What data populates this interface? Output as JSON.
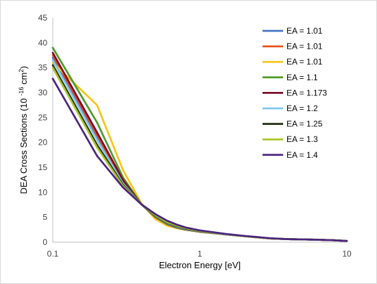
{
  "chart_data": {
    "type": "line",
    "xscale": "log",
    "xlim": [
      0.1,
      10
    ],
    "ylim": [
      0,
      45
    ],
    "xticks": [
      0.1,
      1,
      10
    ],
    "xtick_labels": [
      "0.1",
      "1",
      "10"
    ],
    "yticks": [
      0,
      5,
      10,
      15,
      20,
      25,
      30,
      35,
      40,
      45
    ],
    "ytick_labels": [
      "0",
      "5",
      "10",
      "15",
      "20",
      "25",
      "30",
      "35",
      "40",
      "45"
    ],
    "xlabel": "Electron Energy [eV]",
    "ylabel_parts": {
      "main": "DEA Cross Sections (10 ",
      "exp": "-16",
      "unit": " cm",
      "unit_exp": "2",
      "close": ")"
    },
    "grid": false,
    "legend_position": "top-right",
    "series": [
      {
        "name": "EA = 1.01",
        "color": "#4472c4",
        "points": [
          [
            0.1,
            37.0
          ],
          [
            0.2,
            21.0
          ],
          [
            0.3,
            12.0
          ],
          [
            0.4,
            7.6
          ],
          [
            0.5,
            5.2
          ],
          [
            0.6,
            3.8
          ],
          [
            0.7,
            3.1
          ],
          [
            0.8,
            2.6
          ],
          [
            1.0,
            2.1
          ],
          [
            1.5,
            1.55
          ],
          [
            2.0,
            1.2
          ],
          [
            3.0,
            0.75
          ],
          [
            4.0,
            0.6
          ],
          [
            5.0,
            0.55
          ],
          [
            6.0,
            0.5
          ],
          [
            8.0,
            0.4
          ],
          [
            10.0,
            0.25
          ]
        ]
      },
      {
        "name": "EA = 1.01",
        "color": "#e8541e",
        "points": [
          [
            0.1,
            37.5
          ],
          [
            0.2,
            21.5
          ],
          [
            0.3,
            12.2
          ],
          [
            0.4,
            7.6
          ],
          [
            0.5,
            5.1
          ],
          [
            0.6,
            3.7
          ],
          [
            0.7,
            3.0
          ],
          [
            0.8,
            2.55
          ],
          [
            1.0,
            2.1
          ],
          [
            1.5,
            1.55
          ],
          [
            2.0,
            1.2
          ],
          [
            3.0,
            0.75
          ],
          [
            4.0,
            0.6
          ],
          [
            5.0,
            0.55
          ],
          [
            6.0,
            0.5
          ],
          [
            8.0,
            0.4
          ],
          [
            10.0,
            0.25
          ]
        ]
      },
      {
        "name": "EA = 1.01",
        "color": "#f5c518",
        "points": [
          [
            0.1,
            36.0
          ],
          [
            0.2,
            27.5
          ],
          [
            0.3,
            14.5
          ],
          [
            0.4,
            7.8
          ],
          [
            0.5,
            4.6
          ],
          [
            0.6,
            3.3
          ],
          [
            0.7,
            2.8
          ],
          [
            0.8,
            2.45
          ],
          [
            1.0,
            2.05
          ],
          [
            1.5,
            1.55
          ],
          [
            2.0,
            1.2
          ],
          [
            3.0,
            0.75
          ],
          [
            4.0,
            0.6
          ],
          [
            5.0,
            0.55
          ],
          [
            6.0,
            0.5
          ],
          [
            8.0,
            0.4
          ],
          [
            10.0,
            0.25
          ]
        ]
      },
      {
        "name": "EA = 1.1",
        "color": "#4e9a2a",
        "points": [
          [
            0.1,
            39.0
          ],
          [
            0.2,
            24.0
          ],
          [
            0.3,
            13.0
          ],
          [
            0.4,
            7.6
          ],
          [
            0.5,
            5.0
          ],
          [
            0.6,
            3.6
          ],
          [
            0.7,
            2.9
          ],
          [
            0.8,
            2.5
          ],
          [
            1.0,
            2.1
          ],
          [
            1.5,
            1.55
          ],
          [
            2.0,
            1.2
          ],
          [
            3.0,
            0.75
          ],
          [
            4.0,
            0.6
          ],
          [
            5.0,
            0.55
          ],
          [
            6.0,
            0.5
          ],
          [
            8.0,
            0.4
          ],
          [
            10.0,
            0.25
          ]
        ]
      },
      {
        "name": "EA = 1.173",
        "color": "#7b0c26",
        "points": [
          [
            0.1,
            38.0
          ],
          [
            0.2,
            22.0
          ],
          [
            0.3,
            12.5
          ],
          [
            0.4,
            7.6
          ],
          [
            0.5,
            5.1
          ],
          [
            0.6,
            3.7
          ],
          [
            0.7,
            3.0
          ],
          [
            0.8,
            2.55
          ],
          [
            1.0,
            2.1
          ],
          [
            1.5,
            1.55
          ],
          [
            2.0,
            1.2
          ],
          [
            3.0,
            0.75
          ],
          [
            4.0,
            0.6
          ],
          [
            5.0,
            0.55
          ],
          [
            6.0,
            0.5
          ],
          [
            8.0,
            0.4
          ],
          [
            10.0,
            0.25
          ]
        ]
      },
      {
        "name": "EA = 1.2",
        "color": "#7fc8f0",
        "points": [
          [
            0.1,
            36.5
          ],
          [
            0.2,
            20.5
          ],
          [
            0.3,
            11.8
          ],
          [
            0.4,
            7.6
          ],
          [
            0.5,
            5.2
          ],
          [
            0.6,
            3.8
          ],
          [
            0.7,
            3.1
          ],
          [
            0.8,
            2.6
          ],
          [
            1.0,
            2.15
          ],
          [
            1.5,
            1.55
          ],
          [
            2.0,
            1.2
          ],
          [
            3.0,
            0.75
          ],
          [
            4.0,
            0.6
          ],
          [
            5.0,
            0.55
          ],
          [
            6.0,
            0.5
          ],
          [
            8.0,
            0.4
          ],
          [
            10.0,
            0.25
          ]
        ]
      },
      {
        "name": "EA = 1.25",
        "color": "#1e2b0a",
        "points": [
          [
            0.1,
            35.5
          ],
          [
            0.2,
            19.5
          ],
          [
            0.3,
            11.5
          ],
          [
            0.4,
            7.6
          ],
          [
            0.5,
            5.3
          ],
          [
            0.6,
            3.9
          ],
          [
            0.7,
            3.2
          ],
          [
            0.8,
            2.7
          ],
          [
            1.0,
            2.2
          ],
          [
            1.5,
            1.6
          ],
          [
            2.0,
            1.2
          ],
          [
            3.0,
            0.75
          ],
          [
            4.0,
            0.6
          ],
          [
            5.0,
            0.55
          ],
          [
            6.0,
            0.5
          ],
          [
            8.0,
            0.4
          ],
          [
            10.0,
            0.25
          ]
        ]
      },
      {
        "name": "EA = 1.3",
        "color": "#a9c42a",
        "points": [
          [
            0.1,
            35.0
          ],
          [
            0.2,
            19.0
          ],
          [
            0.3,
            11.3
          ],
          [
            0.4,
            7.6
          ],
          [
            0.5,
            5.4
          ],
          [
            0.6,
            4.0
          ],
          [
            0.7,
            3.3
          ],
          [
            0.8,
            2.8
          ],
          [
            1.0,
            2.25
          ],
          [
            1.5,
            1.6
          ],
          [
            2.0,
            1.2
          ],
          [
            3.0,
            0.75
          ],
          [
            4.0,
            0.6
          ],
          [
            5.0,
            0.55
          ],
          [
            6.0,
            0.5
          ],
          [
            8.0,
            0.4
          ],
          [
            10.0,
            0.25
          ]
        ]
      },
      {
        "name": "EA = 1.4",
        "color": "#4a2480",
        "points": [
          [
            0.1,
            32.8
          ],
          [
            0.2,
            17.3
          ],
          [
            0.3,
            11.0
          ],
          [
            0.4,
            7.6
          ],
          [
            0.5,
            5.6
          ],
          [
            0.6,
            4.3
          ],
          [
            0.7,
            3.5
          ],
          [
            0.8,
            2.95
          ],
          [
            1.0,
            2.35
          ],
          [
            1.5,
            1.65
          ],
          [
            2.0,
            1.25
          ],
          [
            3.0,
            0.8
          ],
          [
            4.0,
            0.6
          ],
          [
            5.0,
            0.55
          ],
          [
            6.0,
            0.5
          ],
          [
            8.0,
            0.4
          ],
          [
            10.0,
            0.25
          ]
        ]
      }
    ]
  }
}
